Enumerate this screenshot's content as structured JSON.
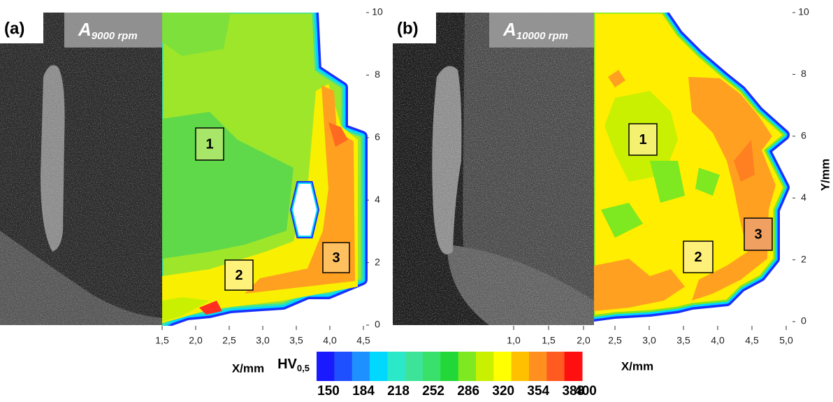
{
  "panels": [
    {
      "label": "(a)",
      "title": "A",
      "title_sub": "9000 rpm",
      "map_xlim": [
        1.5,
        4.5
      ],
      "map_xticks": [
        {
          "value": 1.5,
          "label": "1,5"
        },
        {
          "value": 2.0,
          "label": "2,0"
        },
        {
          "value": 2.5,
          "label": "2,5"
        },
        {
          "value": 3.0,
          "label": "3,0"
        },
        {
          "value": 3.5,
          "label": "3,5"
        },
        {
          "value": 4.0,
          "label": "4,0"
        },
        {
          "value": 4.5,
          "label": "4,5"
        }
      ],
      "ylim": [
        0,
        10
      ],
      "yticks": [
        0,
        2,
        4,
        6,
        8,
        10
      ],
      "xlabel": "X/mm",
      "regions": [
        "1",
        "2",
        "3"
      ]
    },
    {
      "label": "(b)",
      "title": "A",
      "title_sub": "10000 rpm",
      "image_xlim": [
        1.0,
        2.0
      ],
      "image_xticks": [
        {
          "value": 1.0,
          "label": "1,0"
        },
        {
          "value": 1.5,
          "label": "1,5"
        },
        {
          "value": 2.0,
          "label": "2,0"
        }
      ],
      "map_xlim": [
        2.5,
        5.0
      ],
      "map_xticks": [
        {
          "value": 2.5,
          "label": "2,5"
        },
        {
          "value": 3.0,
          "label": "3,0"
        },
        {
          "value": 3.5,
          "label": "3,5"
        },
        {
          "value": 4.0,
          "label": "4,0"
        },
        {
          "value": 4.5,
          "label": "4,5"
        },
        {
          "value": 5.0,
          "label": "5,0"
        }
      ],
      "ylim": [
        0,
        10
      ],
      "yticks": [
        0,
        2,
        4,
        6,
        8,
        10
      ],
      "xlabel": "X/mm",
      "ylabel": "Y/mm",
      "regions": [
        "1",
        "2",
        "3"
      ]
    }
  ],
  "colorbar": {
    "label": "HV",
    "label_sub": "0,5",
    "range": [
      150,
      400
    ],
    "ticks": [
      150,
      184,
      218,
      252,
      286,
      320,
      354,
      388,
      400
    ],
    "colors": [
      "#1a1aff",
      "#1e50ff",
      "#1e90ff",
      "#00d8ff",
      "#2be8c8",
      "#3ee39a",
      "#39e06a",
      "#22d838",
      "#7ee820",
      "#c8f000",
      "#ffff00",
      "#ffc000",
      "#ff9020",
      "#ff5a20",
      "#ff1010"
    ]
  }
}
